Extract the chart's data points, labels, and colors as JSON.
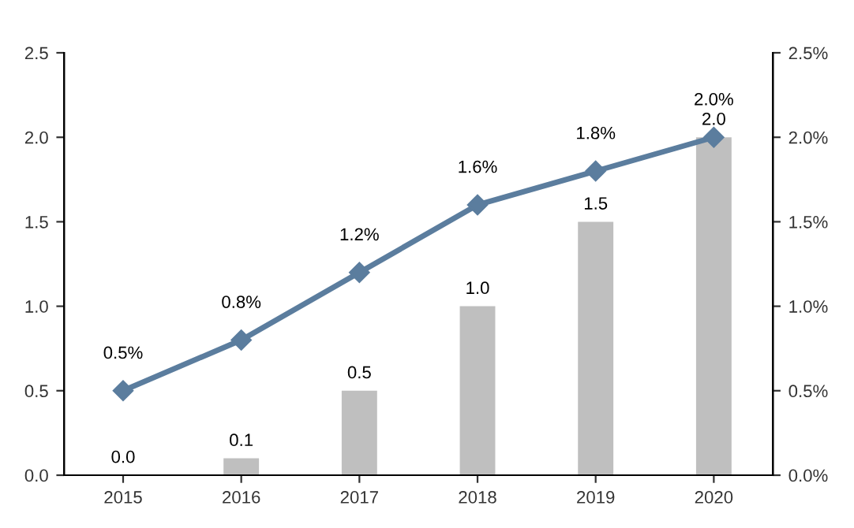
{
  "chart_data": {
    "type": "bar",
    "categories": [
      "2015",
      "2016",
      "2017",
      "2018",
      "2019",
      "2020"
    ],
    "series": [
      {
        "color": "#bfbfbf",
        "values": [
          0.0,
          0.1,
          0.5,
          1.0,
          1.5,
          2.0
        ],
        "value_labels": [
          "0.0",
          "0.1",
          "0.5",
          "1.0",
          "1.5",
          "2.0"
        ]
      },
      {
        "type": "line",
        "axis": "y2",
        "color": "#5b7d9e",
        "marker": "diamond",
        "values": [
          0.5,
          0.8,
          1.2,
          1.6,
          1.8,
          2.0
        ],
        "value_labels": [
          "0.5%",
          "0.8%",
          "1.2%",
          "1.6%",
          "1.8%",
          "2.0%"
        ]
      }
    ],
    "ylim": [
      0,
      2.5
    ],
    "yticks": [
      {
        "value": 0,
        "label": "0.0"
      },
      {
        "value": 0.5,
        "label": "0.5"
      },
      {
        "value": 1,
        "label": "1.0"
      },
      {
        "value": 1.5,
        "label": "1.5"
      },
      {
        "value": 2,
        "label": "2.0"
      },
      {
        "value": 2.5,
        "label": "2.5"
      }
    ],
    "y2lim": [
      0,
      2.5
    ],
    "y2ticks": [
      {
        "value": 0,
        "label": "0.0%"
      },
      {
        "value": 0.5,
        "label": "0.5%"
      },
      {
        "value": 1,
        "label": "1.0%"
      },
      {
        "value": 1.5,
        "label": "1.5%"
      },
      {
        "value": 2,
        "label": "2.0%"
      },
      {
        "value": 2.5,
        "label": "2.5%"
      }
    ],
    "grid": false,
    "legend": false
  }
}
